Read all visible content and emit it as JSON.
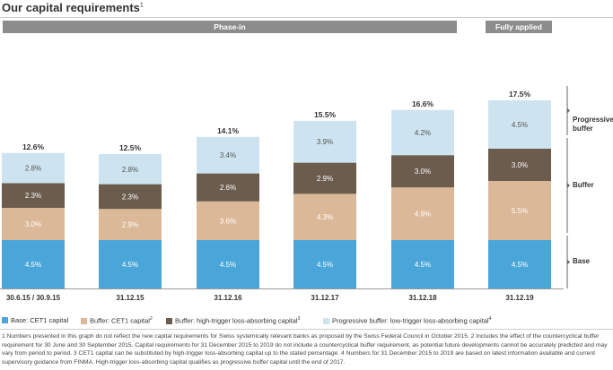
{
  "header": {
    "title": "Our capital requirements",
    "title_footnote_mark": "1",
    "phase_in_label": "Phase-in",
    "fully_applied_label": "Fully applied"
  },
  "colors": {
    "base": "#4aa6d8",
    "buffer_cet1": "#dbb897",
    "buffer_high_trigger": "#6b5c4e",
    "progressive_buffer": "#cde3ef",
    "header_bar": "#8c8c8c"
  },
  "brace_labels": {
    "progressive": [
      "Progressive",
      "buffer"
    ],
    "buffer": "Buffer",
    "base": "Base"
  },
  "legend": [
    {
      "label": "Base: CET1 capital",
      "color": "#4aa6d8"
    },
    {
      "label": "Buffer: CET1 capital",
      "sup": "2",
      "color": "#dbb897"
    },
    {
      "label": "Buffer: high-trigger loss-absorbing capital",
      "sup": "3",
      "color": "#6b5c4e"
    },
    {
      "label": "Progressive buffer: low-trigger loss-absorbing capital",
      "sup": "4",
      "color": "#cde3ef"
    }
  ],
  "footnotes": {
    "line1": "1 Numbers presented in this graph do not reflect the new capital requirements for Swiss systemically relevant banks as proposed by the Swiss Federal Council in October 2015.   2 Includes the effect of the countercyclical buffer",
    "line2": "requirement for 30 June and 30 September 2015. Capital requirements for 31 December 2015 to 2019 do not include a countercyclical buffer requirement, as potential future developments cannot be accurately predicted and may",
    "line3": "vary from period to period.   3 CET1 capital can be substituted by high-trigger loss-absorbing capital up to the stated percentage.   4 Numbers for 31 December 2015 to 2019 are based on latest information available and current",
    "line4": "supervisory guidance from FINMA. High-trigger loss-absorbing capital qualifies as progressive buffer capital until the end of 2017."
  },
  "chart_data": {
    "type": "bar",
    "stacked": true,
    "title": "Our capital requirements",
    "categories": [
      "30.6.15 / 30.9.15",
      "31.12.15",
      "31.12.16",
      "31.12.17",
      "31.12.18",
      "31.12.19"
    ],
    "totals": [
      "12.6%",
      "12.5%",
      "14.1%",
      "15.5%",
      "16.6%",
      "17.5%"
    ],
    "series": [
      {
        "name": "Base: CET1 capital",
        "values": [
          4.5,
          4.5,
          4.5,
          4.5,
          4.5,
          4.5
        ],
        "labels": [
          "4.5%",
          "4.5%",
          "4.5%",
          "4.5%",
          "4.5%",
          "4.5%"
        ],
        "color": "#4aa6d8",
        "label_color": "#ffffff"
      },
      {
        "name": "Buffer: CET1 capital",
        "values": [
          3.0,
          2.9,
          3.6,
          4.3,
          4.9,
          5.5
        ],
        "labels": [
          "3.0%",
          "2.9%",
          "3.6%",
          "4.3%",
          "4.9%",
          "5.5%"
        ],
        "color": "#dbb897",
        "label_color": "#ffffff"
      },
      {
        "name": "Buffer: high-trigger loss-absorbing capital",
        "values": [
          2.3,
          2.3,
          2.6,
          2.9,
          3.0,
          3.0
        ],
        "labels": [
          "2.3%",
          "2.3%",
          "2.6%",
          "2.9%",
          "3.0%",
          "3.0%"
        ],
        "color": "#6b5c4e",
        "label_color": "#ffffff"
      },
      {
        "name": "Progressive buffer: low-trigger loss-absorbing capital",
        "values": [
          2.8,
          2.8,
          3.4,
          3.9,
          4.2,
          4.5
        ],
        "labels": [
          "2.8%",
          "2.8%",
          "3.4%",
          "3.9%",
          "4.2%",
          "4.5%"
        ],
        "color": "#cde3ef",
        "label_color": "#555555"
      }
    ],
    "ylim": [
      0,
      18
    ],
    "grid": false,
    "legend_position": "bottom"
  }
}
